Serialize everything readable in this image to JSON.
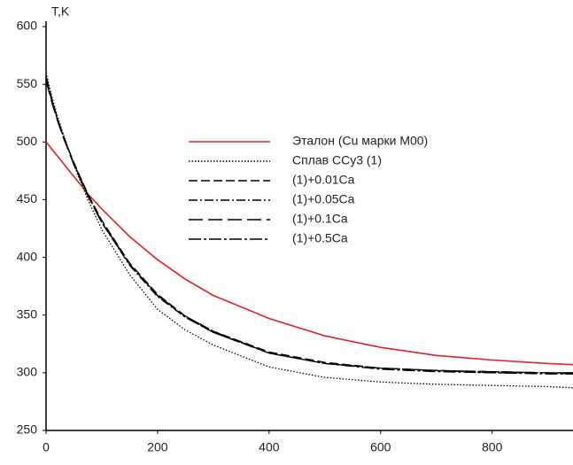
{
  "chart_data": {
    "type": "line",
    "y_label": "T,K",
    "x": [
      0,
      10,
      20,
      30,
      50,
      75,
      100,
      150,
      200,
      250,
      300,
      400,
      500,
      600,
      700,
      800,
      900,
      945
    ],
    "series": [
      {
        "name": "Эталон (Cu марки М00)",
        "color": "#e32222",
        "dash": "none",
        "values": [
          500,
          494,
          488,
          482,
          470,
          455,
          442,
          418,
          398,
          381,
          367,
          347,
          332,
          322,
          315,
          311,
          308,
          307
        ]
      },
      {
        "name": "Сплав ССу3 (1)",
        "color": "#000000",
        "dash": "1.5,2",
        "values": [
          560,
          540,
          523,
          508,
          480,
          450,
          424,
          385,
          355,
          337,
          324,
          305,
          296,
          292,
          290,
          289,
          288,
          287
        ]
      },
      {
        "name": "(1)+0.01Ca",
        "color": "#000000",
        "dash": "10,4",
        "values": [
          555,
          536,
          520,
          506,
          482,
          455,
          432,
          395,
          368,
          349,
          336,
          318,
          309,
          304,
          302,
          301,
          300,
          300
        ]
      },
      {
        "name": "(1)+0.05Ca",
        "color": "#000000",
        "dash": "10,3,2,3",
        "values": [
          557,
          538,
          521,
          507,
          481,
          454,
          430,
          393,
          366,
          348,
          335,
          317,
          308,
          304,
          302,
          300,
          300,
          299
        ]
      },
      {
        "name": "(1)+0.1Ca",
        "color": "#000000",
        "dash": "16,6",
        "values": [
          553,
          535,
          519,
          505,
          480,
          453,
          430,
          394,
          367,
          349,
          336,
          317,
          308,
          304,
          302,
          301,
          300,
          300
        ]
      },
      {
        "name": "(1)+0.5Ca",
        "color": "#000000",
        "dash": "14,3,3,3",
        "values": [
          556,
          537,
          520,
          506,
          481,
          454,
          431,
          394,
          367,
          348,
          335,
          317,
          308,
          303,
          301,
          300,
          299,
          299
        ]
      }
    ],
    "xlim": [
      0,
      945
    ],
    "xticks": [
      0,
      200,
      400,
      600,
      800
    ],
    "ylim": [
      250,
      600
    ],
    "yticks": [
      250,
      300,
      350,
      400,
      450,
      500,
      550,
      600
    ]
  }
}
